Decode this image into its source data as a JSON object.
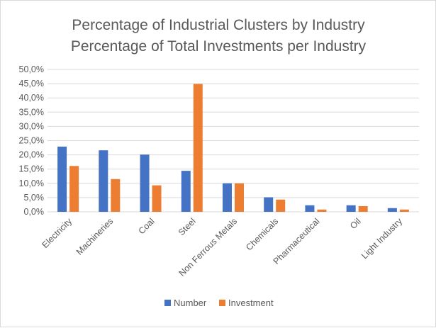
{
  "chart_data": {
    "type": "bar",
    "title_lines": [
      "Percentage of Industrial Clusters by Industry",
      "Percentage of Total Investments per Industry"
    ],
    "categories": [
      "Electricity",
      "Machineries",
      "Coal",
      "Steel",
      "Non Ferrous Metals",
      "Chemicals",
      "Pharmaceutical",
      "Oil",
      "Light Industry"
    ],
    "series": [
      {
        "name": "Number",
        "color": "#4472c4",
        "values": [
          22.9,
          21.6,
          20.1,
          14.4,
          10.0,
          5.1,
          2.3,
          2.3,
          1.3
        ]
      },
      {
        "name": "Investment",
        "color": "#ed7d31",
        "values": [
          16.1,
          11.5,
          9.3,
          44.9,
          10.0,
          4.3,
          0.8,
          2.0,
          0.8
        ]
      }
    ],
    "yticks": [
      "0,0%",
      "5,0%",
      "10,0%",
      "15,0%",
      "20,0%",
      "25,0%",
      "30,0%",
      "35,0%",
      "40,0%",
      "45,0%",
      "50,0%"
    ],
    "ylim": [
      0,
      50
    ],
    "grid": true,
    "legend_position": "bottom",
    "gridline_color": "#d9d9d9"
  }
}
